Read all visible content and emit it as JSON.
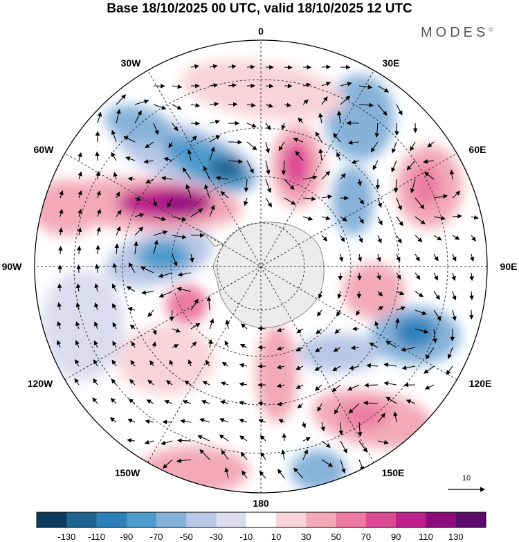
{
  "title": "Base 18/10/2025 00 UTC, valid 18/10/2025 12 UTC",
  "brand": "MODES",
  "brand_mark": "©",
  "meridian_labels": {
    "m0": "0",
    "m30e": "30E",
    "m60e": "60E",
    "m90e": "90E",
    "m120e": "120E",
    "m150e": "150E",
    "m180": "180",
    "m150w": "150W",
    "m120w": "120W",
    "m90w": "90W",
    "m60w": "60W",
    "m30w": "30W"
  },
  "vector_reference": "10",
  "colorbar": {
    "colors": [
      "#0d3b5e",
      "#1f6391",
      "#2e80bb",
      "#4d9bcc",
      "#86b2da",
      "#b9c8e6",
      "#dcdcef",
      "#ffffff",
      "#f8d3d9",
      "#f3a9b8",
      "#ec7aa2",
      "#dd4a94",
      "#bd1f8b",
      "#8e0b7e",
      "#5c0a6b"
    ],
    "labels": [
      "-130",
      "-110",
      "-90",
      "-70",
      "-50",
      "-30",
      "-10",
      "10",
      "30",
      "50",
      "70",
      "90",
      "110",
      "130"
    ]
  },
  "anomaly_colors": {
    "land": "#ececec",
    "coast": "#8a8a8a"
  }
}
